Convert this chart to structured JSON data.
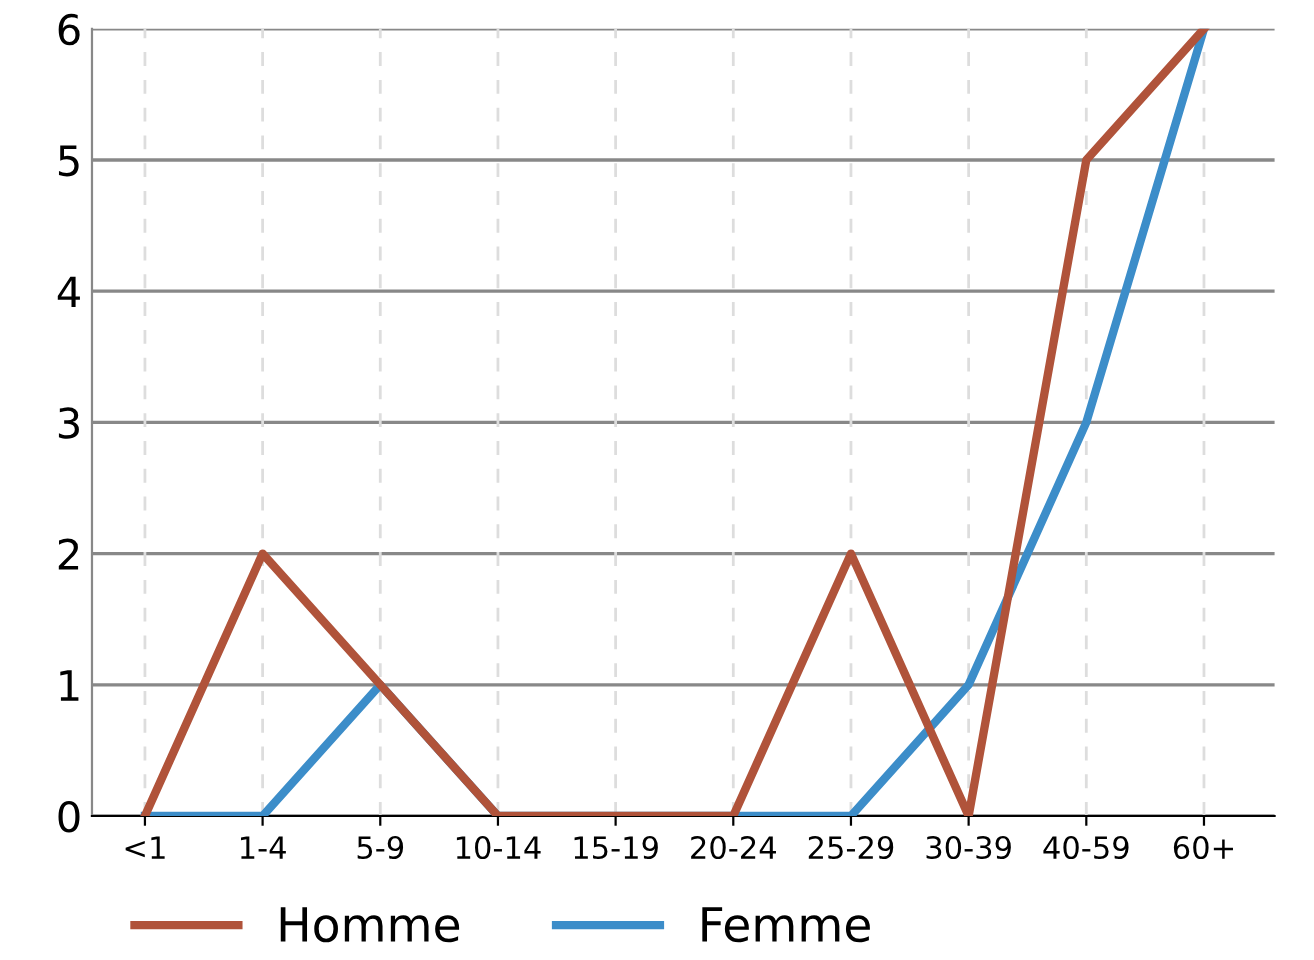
{
  "chart_data": {
    "type": "line",
    "categories": [
      "<1",
      "1-4",
      "5-9",
      "10-14",
      "15-19",
      "20-24",
      "25-29",
      "30-39",
      "40-59",
      "60+"
    ],
    "series": [
      {
        "name": "Homme",
        "color": "#b0533a",
        "values": [
          0,
          2,
          1,
          0,
          0,
          0,
          2,
          0,
          5,
          6
        ]
      },
      {
        "name": "Femme",
        "color": "#3c8dc9",
        "values": [
          0,
          0,
          1,
          0,
          0,
          0,
          0,
          1,
          3,
          6
        ]
      }
    ],
    "ylim": [
      0,
      6
    ],
    "yticks": [
      0,
      1,
      2,
      3,
      4,
      5,
      6
    ],
    "grid": true,
    "legend": "bottom",
    "marker": "none",
    "line_style": "solid"
  }
}
